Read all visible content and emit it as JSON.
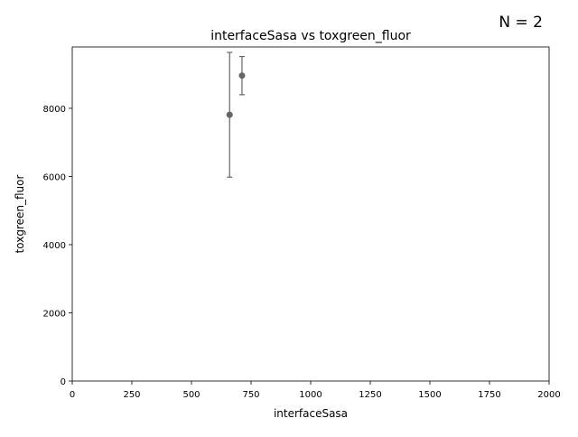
{
  "annotation": "N = 2",
  "chart_data": {
    "type": "scatter",
    "title": "interfaceSasa vs toxgreen_fluor",
    "xlabel": "interfaceSasa",
    "ylabel": "toxgreen_fluor",
    "xlim": [
      0,
      2000
    ],
    "ylim": [
      0,
      9800
    ],
    "xticks": [
      0,
      250,
      500,
      750,
      1000,
      1250,
      1500,
      1750,
      2000
    ],
    "xtick_labels": [
      "0",
      "250",
      "500",
      "750",
      "1000",
      "1250",
      "1500",
      "1750",
      "2000"
    ],
    "yticks": [
      0,
      2000,
      4000,
      6000,
      8000
    ],
    "ytick_labels": [
      "0",
      "2000",
      "4000",
      "6000",
      "8000"
    ],
    "grid": false,
    "color": "#666666",
    "points": [
      {
        "x": 660,
        "y": 7810,
        "err_low": 5980,
        "err_high": 9640
      },
      {
        "x": 712,
        "y": 8960,
        "err_low": 8400,
        "err_high": 9520
      }
    ]
  }
}
